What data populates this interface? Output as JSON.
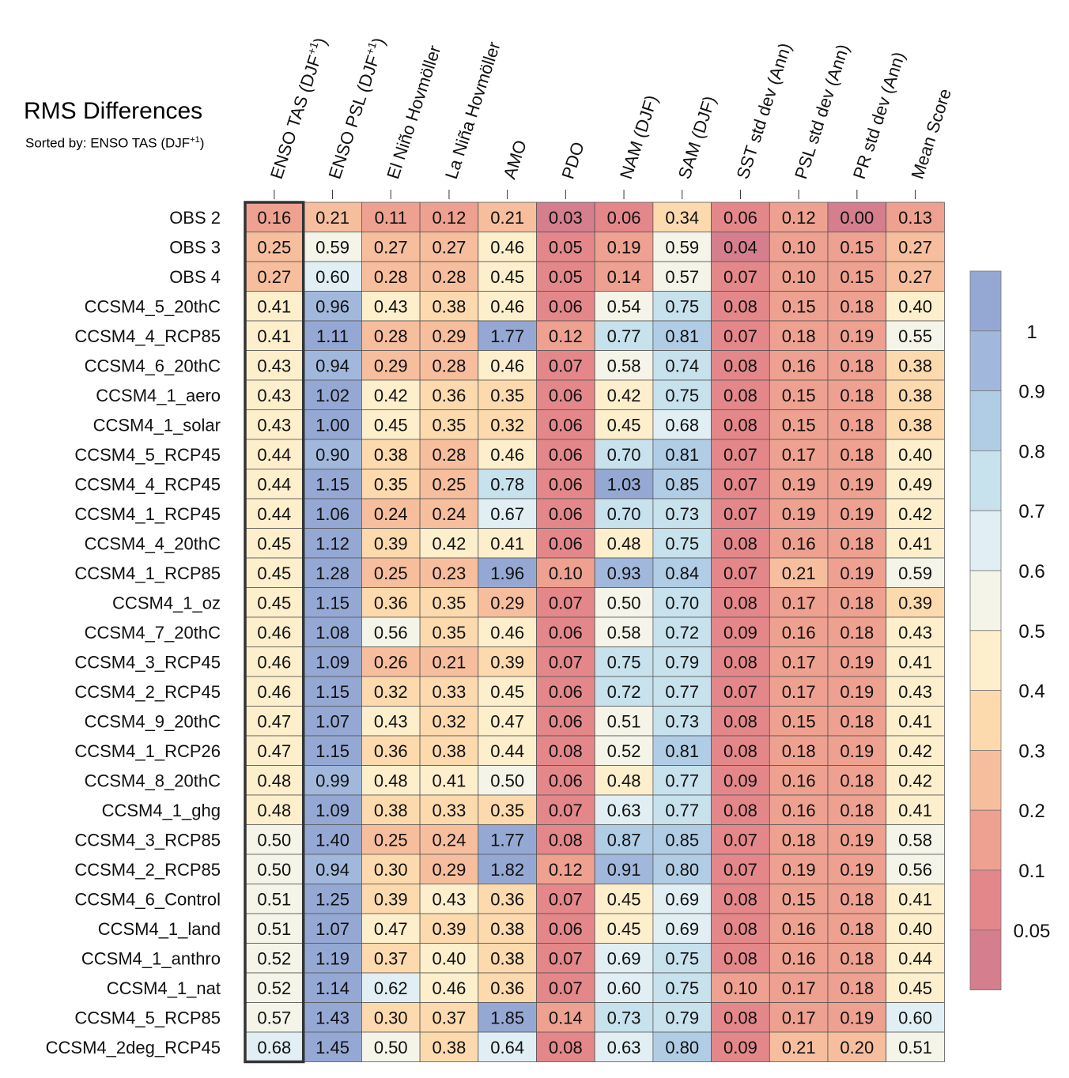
{
  "chart_data": {
    "type": "heatmap",
    "title": "RMS Differences",
    "subtitle_prefix": "Sorted by: ENSO TAS (DJF",
    "subtitle_sup": "+1",
    "subtitle_suffix": ")",
    "columns": [
      {
        "label": "ENSO TAS (DJF",
        "sup": "+1",
        "suffix": ")"
      },
      {
        "label": "ENSO PSL (DJF",
        "sup": "+1",
        "suffix": ")"
      },
      {
        "label": "El Niño Hovmöller",
        "sup": "",
        "suffix": ""
      },
      {
        "label": "La Niña Hovmöller",
        "sup": "",
        "suffix": ""
      },
      {
        "label": "AMO",
        "sup": "",
        "suffix": ""
      },
      {
        "label": "PDO",
        "sup": "",
        "suffix": ""
      },
      {
        "label": "NAM (DJF)",
        "sup": "",
        "suffix": ""
      },
      {
        "label": "SAM (DJF)",
        "sup": "",
        "suffix": ""
      },
      {
        "label": "SST std dev (Ann)",
        "sup": "",
        "suffix": ""
      },
      {
        "label": "PSL std dev (Ann)",
        "sup": "",
        "suffix": ""
      },
      {
        "label": "PR std dev (Ann)",
        "sup": "",
        "suffix": ""
      },
      {
        "label": "Mean Score",
        "sup": "",
        "suffix": ""
      }
    ],
    "rows": [
      "OBS 2",
      "OBS 3",
      "OBS 4",
      "CCSM4_5_20thC",
      "CCSM4_4_RCP85",
      "CCSM4_6_20thC",
      "CCSM4_1_aero",
      "CCSM4_1_solar",
      "CCSM4_5_RCP45",
      "CCSM4_4_RCP45",
      "CCSM4_1_RCP45",
      "CCSM4_4_20thC",
      "CCSM4_1_RCP85",
      "CCSM4_1_oz",
      "CCSM4_7_20thC",
      "CCSM4_3_RCP45",
      "CCSM4_2_RCP45",
      "CCSM4_9_20thC",
      "CCSM4_1_RCP26",
      "CCSM4_8_20thC",
      "CCSM4_1_ghg",
      "CCSM4_3_RCP85",
      "CCSM4_2_RCP85",
      "CCSM4_6_Control",
      "CCSM4_1_land",
      "CCSM4_1_anthro",
      "CCSM4_1_nat",
      "CCSM4_5_RCP85",
      "CCSM4_2deg_RCP45"
    ],
    "values": [
      [
        "0.16",
        "0.21",
        "0.11",
        "0.12",
        "0.21",
        "0.03",
        "0.06",
        "0.34",
        "0.06",
        "0.12",
        "0.00",
        "0.13"
      ],
      [
        "0.25",
        "0.59",
        "0.27",
        "0.27",
        "0.46",
        "0.05",
        "0.19",
        "0.59",
        "0.04",
        "0.10",
        "0.15",
        "0.27"
      ],
      [
        "0.27",
        "0.60",
        "0.28",
        "0.28",
        "0.45",
        "0.05",
        "0.14",
        "0.57",
        "0.07",
        "0.10",
        "0.15",
        "0.27"
      ],
      [
        "0.41",
        "0.96",
        "0.43",
        "0.38",
        "0.46",
        "0.06",
        "0.54",
        "0.75",
        "0.08",
        "0.15",
        "0.18",
        "0.40"
      ],
      [
        "0.41",
        "1.11",
        "0.28",
        "0.29",
        "1.77",
        "0.12",
        "0.77",
        "0.81",
        "0.07",
        "0.18",
        "0.19",
        "0.55"
      ],
      [
        "0.43",
        "0.94",
        "0.29",
        "0.28",
        "0.46",
        "0.07",
        "0.58",
        "0.74",
        "0.08",
        "0.16",
        "0.18",
        "0.38"
      ],
      [
        "0.43",
        "1.02",
        "0.42",
        "0.36",
        "0.35",
        "0.06",
        "0.42",
        "0.75",
        "0.08",
        "0.15",
        "0.18",
        "0.38"
      ],
      [
        "0.43",
        "1.00",
        "0.45",
        "0.35",
        "0.32",
        "0.06",
        "0.45",
        "0.68",
        "0.08",
        "0.15",
        "0.18",
        "0.38"
      ],
      [
        "0.44",
        "0.90",
        "0.38",
        "0.28",
        "0.46",
        "0.06",
        "0.70",
        "0.81",
        "0.07",
        "0.17",
        "0.18",
        "0.40"
      ],
      [
        "0.44",
        "1.15",
        "0.35",
        "0.25",
        "0.78",
        "0.06",
        "1.03",
        "0.85",
        "0.07",
        "0.19",
        "0.19",
        "0.49"
      ],
      [
        "0.44",
        "1.06",
        "0.24",
        "0.24",
        "0.67",
        "0.06",
        "0.70",
        "0.73",
        "0.07",
        "0.19",
        "0.19",
        "0.42"
      ],
      [
        "0.45",
        "1.12",
        "0.39",
        "0.42",
        "0.41",
        "0.06",
        "0.48",
        "0.75",
        "0.08",
        "0.16",
        "0.18",
        "0.41"
      ],
      [
        "0.45",
        "1.28",
        "0.25",
        "0.23",
        "1.96",
        "0.10",
        "0.93",
        "0.84",
        "0.07",
        "0.21",
        "0.19",
        "0.59"
      ],
      [
        "0.45",
        "1.15",
        "0.36",
        "0.35",
        "0.29",
        "0.07",
        "0.50",
        "0.70",
        "0.08",
        "0.17",
        "0.18",
        "0.39"
      ],
      [
        "0.46",
        "1.08",
        "0.56",
        "0.35",
        "0.46",
        "0.06",
        "0.58",
        "0.72",
        "0.09",
        "0.16",
        "0.18",
        "0.43"
      ],
      [
        "0.46",
        "1.09",
        "0.26",
        "0.21",
        "0.39",
        "0.07",
        "0.75",
        "0.79",
        "0.08",
        "0.17",
        "0.19",
        "0.41"
      ],
      [
        "0.46",
        "1.15",
        "0.32",
        "0.33",
        "0.45",
        "0.06",
        "0.72",
        "0.77",
        "0.07",
        "0.17",
        "0.19",
        "0.43"
      ],
      [
        "0.47",
        "1.07",
        "0.43",
        "0.32",
        "0.47",
        "0.06",
        "0.51",
        "0.73",
        "0.08",
        "0.15",
        "0.18",
        "0.41"
      ],
      [
        "0.47",
        "1.15",
        "0.36",
        "0.38",
        "0.44",
        "0.08",
        "0.52",
        "0.81",
        "0.08",
        "0.18",
        "0.19",
        "0.42"
      ],
      [
        "0.48",
        "0.99",
        "0.48",
        "0.41",
        "0.50",
        "0.06",
        "0.48",
        "0.77",
        "0.09",
        "0.16",
        "0.18",
        "0.42"
      ],
      [
        "0.48",
        "1.09",
        "0.38",
        "0.33",
        "0.35",
        "0.07",
        "0.63",
        "0.77",
        "0.08",
        "0.16",
        "0.18",
        "0.41"
      ],
      [
        "0.50",
        "1.40",
        "0.25",
        "0.24",
        "1.77",
        "0.08",
        "0.87",
        "0.85",
        "0.07",
        "0.18",
        "0.19",
        "0.58"
      ],
      [
        "0.50",
        "0.94",
        "0.30",
        "0.29",
        "1.82",
        "0.12",
        "0.91",
        "0.80",
        "0.07",
        "0.19",
        "0.19",
        "0.56"
      ],
      [
        "0.51",
        "1.25",
        "0.39",
        "0.43",
        "0.36",
        "0.07",
        "0.45",
        "0.69",
        "0.08",
        "0.15",
        "0.18",
        "0.41"
      ],
      [
        "0.51",
        "1.07",
        "0.47",
        "0.39",
        "0.38",
        "0.06",
        "0.45",
        "0.69",
        "0.08",
        "0.16",
        "0.18",
        "0.40"
      ],
      [
        "0.52",
        "1.19",
        "0.37",
        "0.40",
        "0.38",
        "0.07",
        "0.69",
        "0.75",
        "0.08",
        "0.16",
        "0.18",
        "0.44"
      ],
      [
        "0.52",
        "1.14",
        "0.62",
        "0.46",
        "0.36",
        "0.07",
        "0.60",
        "0.75",
        "0.10",
        "0.17",
        "0.18",
        "0.45"
      ],
      [
        "0.57",
        "1.43",
        "0.30",
        "0.37",
        "1.85",
        "0.14",
        "0.73",
        "0.79",
        "0.08",
        "0.17",
        "0.19",
        "0.60"
      ],
      [
        "0.68",
        "1.45",
        "0.50",
        "0.38",
        "0.64",
        "0.08",
        "0.63",
        "0.80",
        "0.09",
        "0.21",
        "0.20",
        "0.51"
      ]
    ],
    "sorted_column_index": 0,
    "colorbar": {
      "ticks": [
        "1",
        "0.9",
        "0.8",
        "0.7",
        "0.6",
        "0.5",
        "0.4",
        "0.3",
        "0.2",
        "0.1",
        "0.05"
      ],
      "bins": [
        {
          "max": 0.05,
          "color": "#d47e8e"
        },
        {
          "max": 0.1,
          "color": "#e4878a"
        },
        {
          "max": 0.2,
          "color": "#eea190"
        },
        {
          "max": 0.3,
          "color": "#f7be9e"
        },
        {
          "max": 0.4,
          "color": "#fcdaae"
        },
        {
          "max": 0.5,
          "color": "#fdefcc"
        },
        {
          "max": 0.6,
          "color": "#f5f4e8"
        },
        {
          "max": 0.7,
          "color": "#e1eff4"
        },
        {
          "max": 0.8,
          "color": "#c7e1ed"
        },
        {
          "max": 0.9,
          "color": "#b1cde6"
        },
        {
          "max": 1.0,
          "color": "#a1b8dc"
        },
        {
          "max": 999,
          "color": "#95a8d4"
        }
      ]
    }
  }
}
